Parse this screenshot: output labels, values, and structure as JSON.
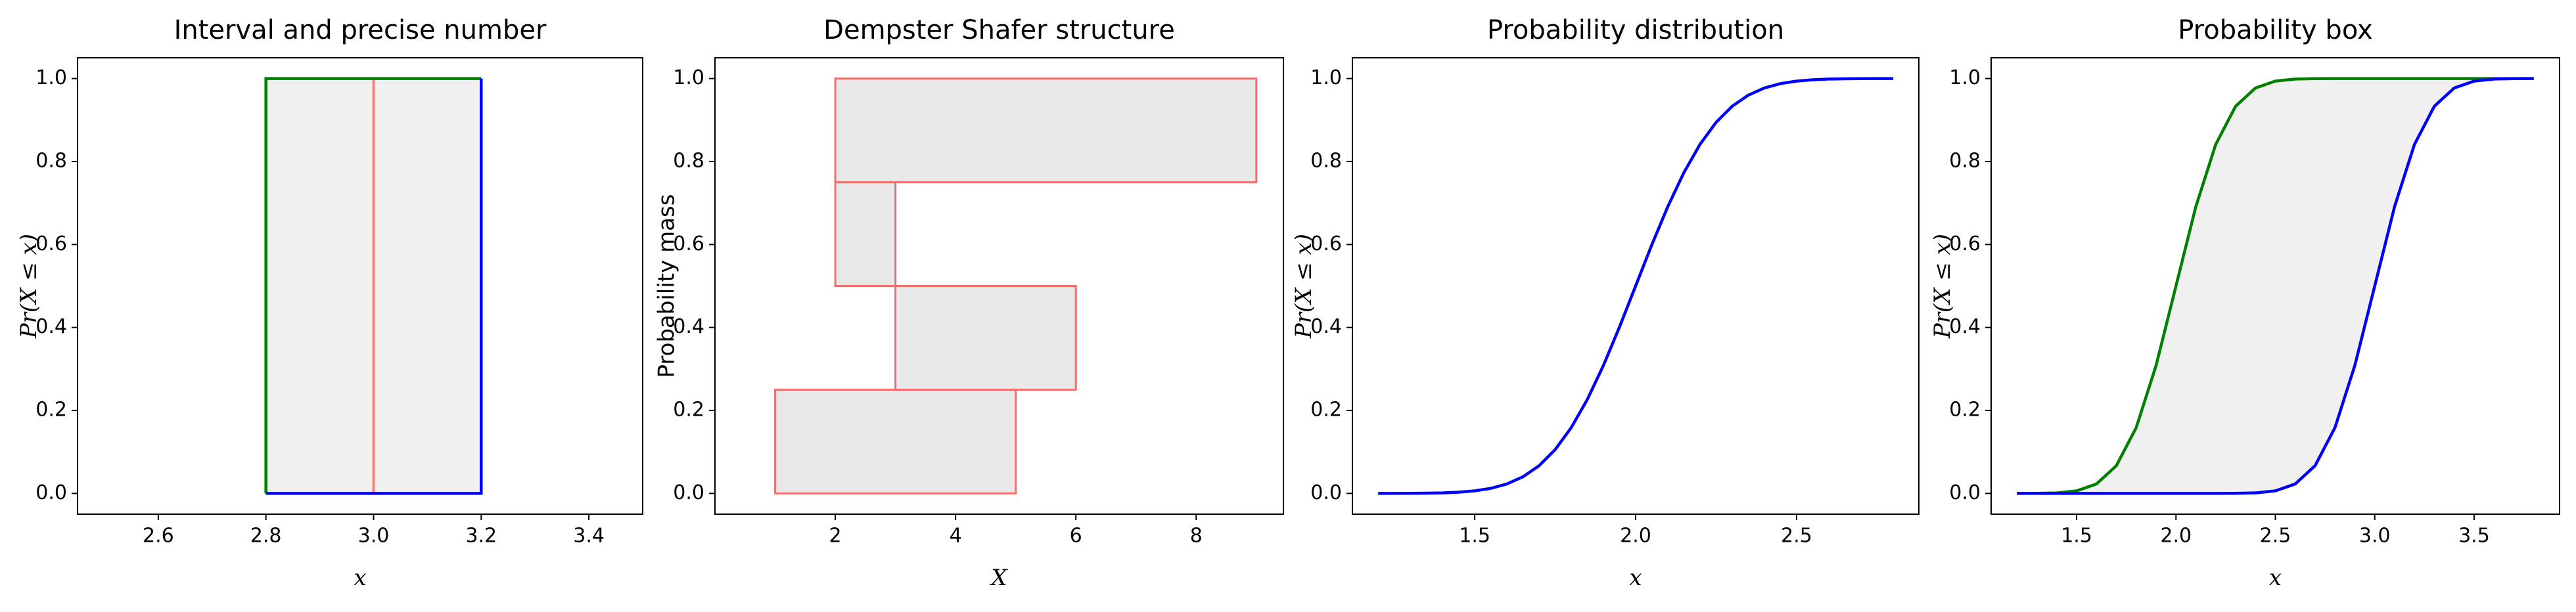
{
  "chart_data": [
    {
      "type": "interval",
      "title": "Interval and precise number",
      "xlabel": "x",
      "ylabel": "Pr(X ≤ x)",
      "interval": [
        2.8,
        3.2
      ],
      "point": 3.0,
      "left_color": "#008000",
      "right_color": "#0000ff",
      "point_color": "#ff7f7f",
      "fill_color": "#f0f0f0",
      "xlim": [
        2.45,
        3.5
      ],
      "xticks": [
        2.6,
        2.8,
        {
          "value": 3.0,
          "label": "3.0"
        },
        3.2,
        3.4
      ],
      "ylim": [
        -0.05,
        1.05
      ],
      "yticks": [
        {
          "value": 0,
          "label": "0.0"
        },
        0.2,
        0.4,
        0.6,
        0.8,
        {
          "value": 1,
          "label": "1.0"
        }
      ]
    },
    {
      "type": "dsstructure",
      "title": "Dempster Shafer structure",
      "xlabel": "X",
      "ylabel": "Probability mass",
      "focal_elements": [
        {
          "interval": [
            1,
            5
          ],
          "mass": 0.25
        },
        {
          "interval": [
            3,
            6
          ],
          "mass": 0.25
        },
        {
          "interval": [
            2,
            3
          ],
          "mass": 0.25
        },
        {
          "interval": [
            2,
            9
          ],
          "mass": 0.25
        }
      ],
      "edge_color": "#f07070",
      "fill_color": "#e8e8e8",
      "xlim": [
        0,
        9.45
      ],
      "xticks": [
        2,
        4,
        6,
        8
      ],
      "ylim": [
        -0.05,
        1.05
      ],
      "yticks": [
        {
          "value": 0,
          "label": "0.0"
        },
        0.2,
        0.4,
        0.6,
        0.8,
        {
          "value": 1,
          "label": "1.0"
        }
      ]
    },
    {
      "type": "line",
      "title": "Probability distribution",
      "xlabel": "x",
      "ylabel": "Pr(X ≤ x)",
      "x": [
        1.2,
        1.25,
        1.3,
        1.35,
        1.4,
        1.45,
        1.5,
        1.55,
        1.6,
        1.65,
        1.7,
        1.75,
        1.8,
        1.85,
        1.9,
        1.95,
        2.0,
        2.05,
        2.1,
        2.15,
        2.2,
        2.25,
        2.3,
        2.35,
        2.4,
        2.45,
        2.5,
        2.55,
        2.6,
        2.65,
        2.7,
        2.75,
        2.8
      ],
      "series": [
        {
          "color": "#0000ff",
          "values": [
            0,
            0.0001,
            0.0002,
            0.0006,
            0.0013,
            0.003,
            0.0062,
            0.0122,
            0.0228,
            0.0401,
            0.0668,
            0.1056,
            0.1587,
            0.2266,
            0.3085,
            0.4013,
            0.5,
            0.5987,
            0.6915,
            0.7734,
            0.8413,
            0.8944,
            0.9332,
            0.9599,
            0.9772,
            0.9878,
            0.9938,
            0.997,
            0.9987,
            0.9994,
            0.9998,
            0.9999,
            1
          ]
        }
      ],
      "xlim": [
        1.12,
        2.88
      ],
      "xticks": [
        1.5,
        {
          "value": 2,
          "label": "2.0"
        },
        2.5
      ],
      "ylim": [
        -0.05,
        1.05
      ],
      "yticks": [
        {
          "value": 0,
          "label": "0.0"
        },
        0.2,
        0.4,
        0.6,
        0.8,
        {
          "value": 1,
          "label": "1.0"
        }
      ]
    },
    {
      "type": "pbox",
      "title": "Probability box",
      "xlabel": "x",
      "ylabel": "Pr(X ≤ x)",
      "fill_color": "#f0f0f0",
      "x": [
        1.2,
        1.3,
        1.4,
        1.5,
        1.6,
        1.7,
        1.8,
        1.9,
        2.0,
        2.1,
        2.2,
        2.3,
        2.4,
        2.5,
        2.6,
        2.7,
        2.8,
        2.9,
        3.0,
        3.1,
        3.2,
        3.3,
        3.4,
        3.5,
        3.6,
        3.7,
        3.8
      ],
      "series": [
        {
          "color": "#008000",
          "values": [
            0,
            0.0002,
            0.0013,
            0.0062,
            0.0228,
            0.0668,
            0.1587,
            0.3085,
            0.5,
            0.6915,
            0.8413,
            0.9332,
            0.9772,
            0.9938,
            0.9987,
            0.9998,
            1,
            1,
            1,
            1,
            1,
            1,
            1,
            1,
            1,
            1,
            1
          ]
        },
        {
          "color": "#0000ff",
          "values": [
            0,
            0,
            0,
            0,
            0,
            0,
            0,
            0,
            0,
            0,
            0,
            0.0002,
            0.0013,
            0.0062,
            0.0228,
            0.0668,
            0.1587,
            0.3085,
            0.5,
            0.6915,
            0.8413,
            0.9332,
            0.9772,
            0.9938,
            0.9987,
            0.9998,
            1
          ]
        }
      ],
      "xlim": [
        1.07,
        3.93
      ],
      "xticks": [
        1.5,
        {
          "value": 2,
          "label": "2.0"
        },
        2.5,
        {
          "value": 3,
          "label": "3.0"
        },
        3.5
      ],
      "ylim": [
        -0.05,
        1.05
      ],
      "yticks": [
        {
          "value": 0,
          "label": "0.0"
        },
        0.2,
        0.4,
        0.6,
        0.8,
        {
          "value": 1,
          "label": "1.0"
        }
      ]
    }
  ]
}
